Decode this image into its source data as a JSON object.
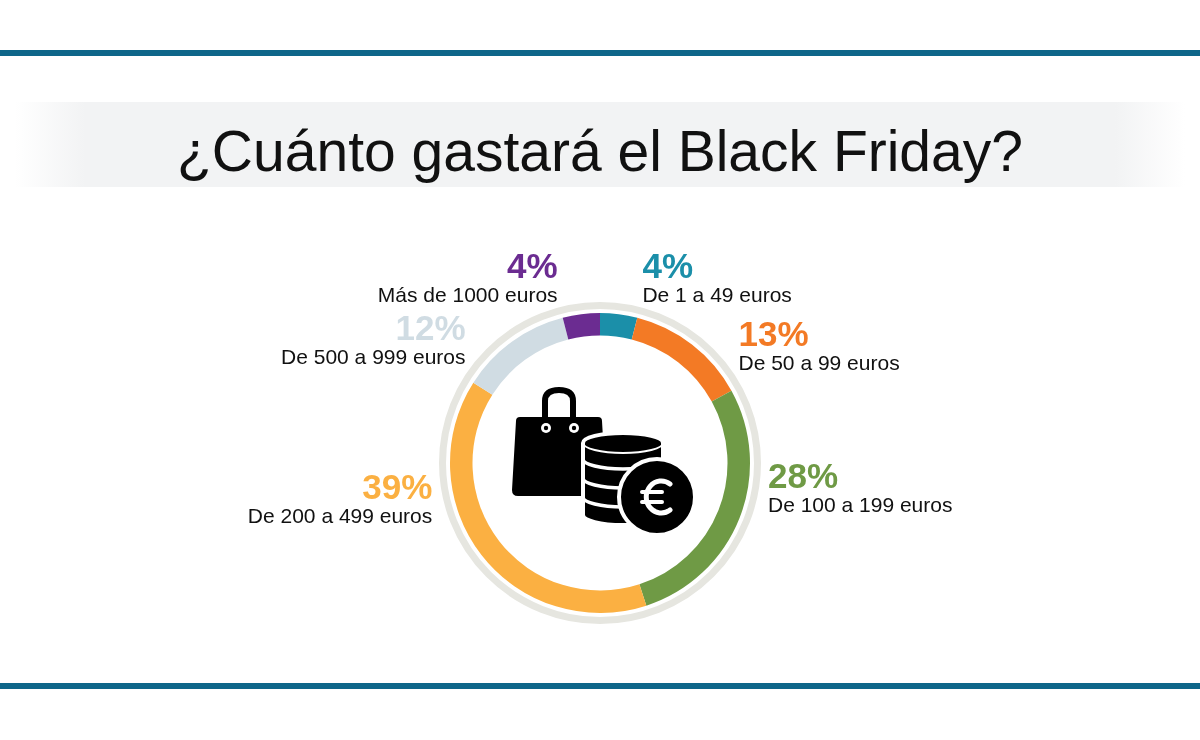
{
  "chart_data": {
    "type": "donut",
    "title": "¿Cuánto gastará el Black Friday?",
    "categories": [
      "De 1 a 49 euros",
      "De 50 a 99 euros",
      "De 100 a 199 euros",
      "De 200 a 499 euros",
      "De 500 a 999 euros",
      "Más de 1000 euros"
    ],
    "values": [
      4,
      13,
      28,
      39,
      12,
      4
    ],
    "colors": [
      "#1b8fa9",
      "#f37a25",
      "#6f9a45",
      "#fbb042",
      "#d0dce3",
      "#6b2c91"
    ],
    "value_labels": [
      "4%",
      "13%",
      "28%",
      "39%",
      "12%",
      "4%"
    ]
  }
}
